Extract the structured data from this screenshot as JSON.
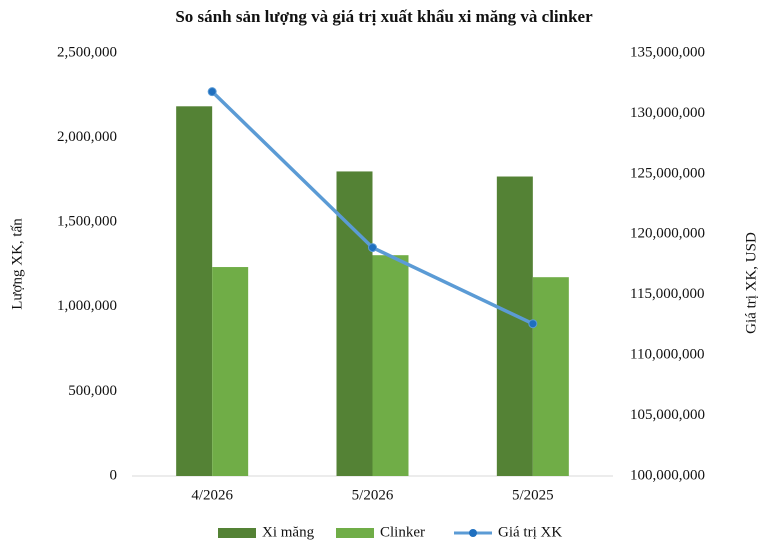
{
  "chart_data": {
    "type": "bar-line",
    "title": "So sánh sản lượng và giá trị xuất khẩu xi măng và clinker",
    "y_label": "Lượng XK, tấn",
    "y2_label": "Giá trị XK, USD",
    "categories": [
      "4/2026",
      "5/2026",
      "5/2025"
    ],
    "series": [
      {
        "name": "Xi măng",
        "type": "bar",
        "color": "#548235",
        "values": [
          2185000,
          1800000,
          1770000
        ]
      },
      {
        "name": "Clinker",
        "type": "bar",
        "color": "#70ad47",
        "values": [
          1235000,
          1305000,
          1175000
        ]
      },
      {
        "name": "Giá trị XK",
        "type": "line",
        "axis": "y2",
        "color": "#5b9bd5",
        "values": [
          131800000,
          118900000,
          112600000
        ]
      }
    ],
    "ylim": [
      0,
      2500000
    ],
    "yticks": [
      0,
      {
        "value": 500000,
        "label": "500,000"
      },
      {
        "value": 1000000,
        "label": "1,000,000"
      },
      {
        "value": 1500000,
        "label": "1,500,000"
      },
      {
        "value": 2000000,
        "label": "2,000,000"
      },
      {
        "value": 2500000,
        "label": "2,500,000"
      }
    ],
    "y2lim": [
      100000000,
      135000000
    ],
    "y2ticks": [
      {
        "value": 100000000,
        "label": "100,000,000"
      },
      {
        "value": 105000000,
        "label": "105,000,000"
      },
      {
        "value": 110000000,
        "label": "110,000,000"
      },
      {
        "value": 115000000,
        "label": "115,000,000"
      },
      {
        "value": 120000000,
        "label": "120,000,000"
      },
      {
        "value": 125000000,
        "label": "125,000,000"
      },
      {
        "value": 130000000,
        "label": "130,000,000"
      },
      {
        "value": 135000000,
        "label": "135,000,000"
      }
    ],
    "legend": "bottom"
  }
}
